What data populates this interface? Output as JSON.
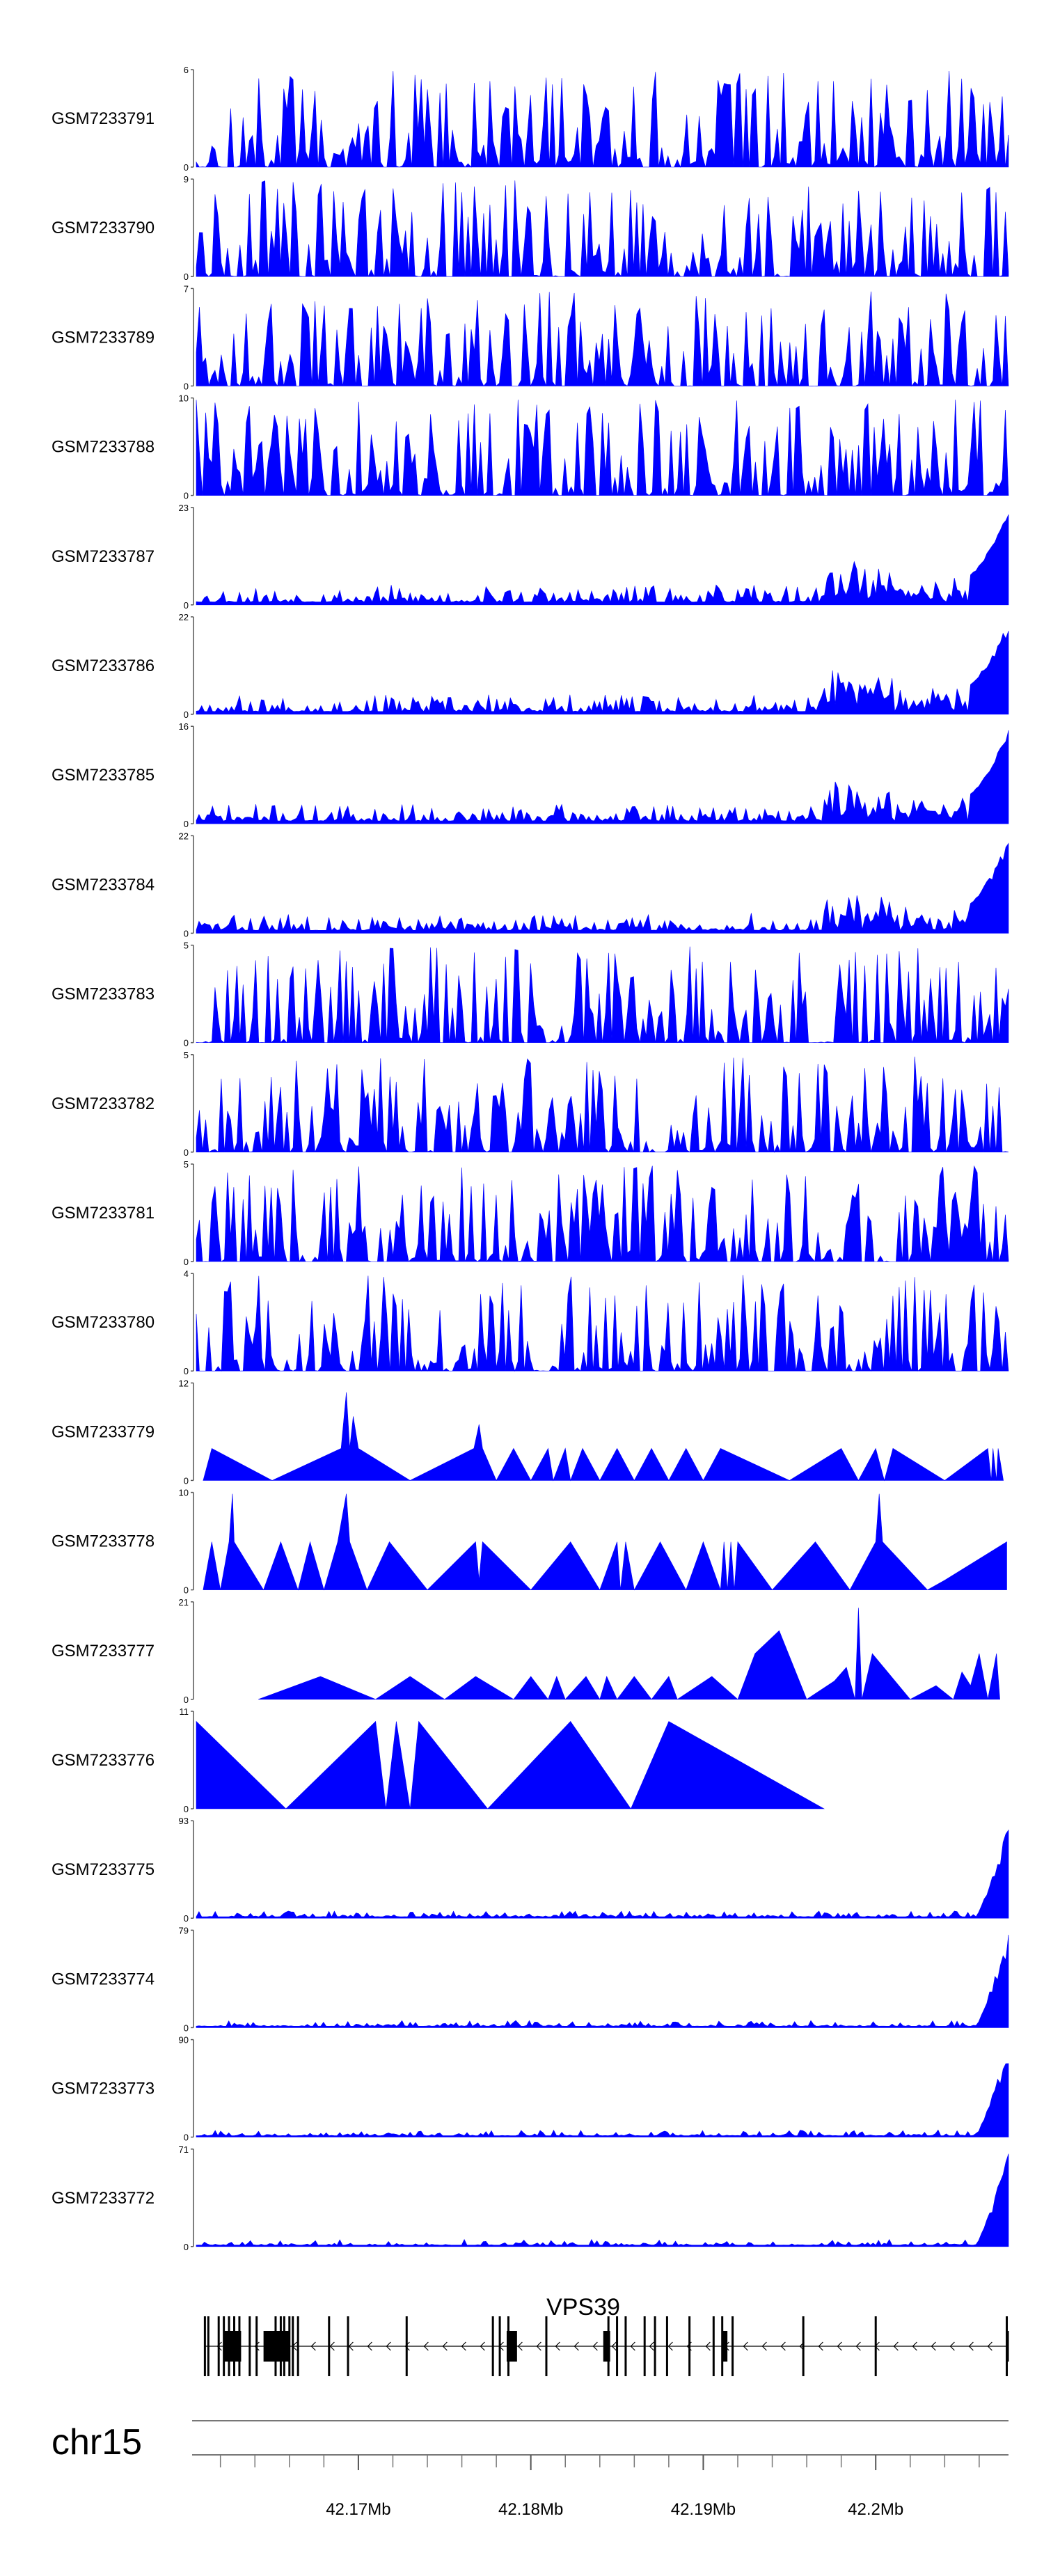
{
  "chart_data": {
    "type": "area",
    "title": "",
    "xlabel": "",
    "ylabel": "",
    "chromosome": "chr15",
    "xlim": [
      42.1606,
      42.2077
    ],
    "color": "#0000ff",
    "gene": {
      "name": "VPS39",
      "strand": "-"
    },
    "x_ticks": [
      {
        "value": 42.17,
        "label": "42.17Mb"
      },
      {
        "value": 42.18,
        "label": "42.18Mb"
      },
      {
        "value": 42.19,
        "label": "42.19Mb"
      },
      {
        "value": 42.2,
        "label": "42.2Mb"
      }
    ],
    "series": [
      {
        "name": "GSM7233791",
        "ymax": 6,
        "ymin_label": "0",
        "ymax_label": "6",
        "pattern": "dense",
        "seed": 11
      },
      {
        "name": "GSM7233790",
        "ymax": 9,
        "ymin_label": "0",
        "ymax_label": "9",
        "pattern": "dense",
        "seed": 23
      },
      {
        "name": "GSM7233789",
        "ymax": 7,
        "ymin_label": "0",
        "ymax_label": "7",
        "pattern": "dense",
        "seed": 37
      },
      {
        "name": "GSM7233788",
        "ymax": 10,
        "ymin_label": "0",
        "ymax_label": "10",
        "pattern": "dense",
        "seed": 41
      },
      {
        "name": "GSM7233787",
        "ymax": 23,
        "ymin_label": "0",
        "ymax_label": "23",
        "pattern": "rising",
        "seed": 53
      },
      {
        "name": "GSM7233786",
        "ymax": 22,
        "ymin_label": "0",
        "ymax_label": "22",
        "pattern": "rising",
        "seed": 67
      },
      {
        "name": "GSM7233785",
        "ymax": 16,
        "ymin_label": "0",
        "ymax_label": "16",
        "pattern": "rising",
        "seed": 71
      },
      {
        "name": "GSM7233784",
        "ymax": 22,
        "ymin_label": "0",
        "ymax_label": "22",
        "pattern": "rising",
        "seed": 83
      },
      {
        "name": "GSM7233783",
        "ymax": 5,
        "ymin_label": "0",
        "ymax_label": "5",
        "pattern": "dense",
        "seed": 97
      },
      {
        "name": "GSM7233782",
        "ymax": 5,
        "ymin_label": "0",
        "ymax_label": "5",
        "pattern": "dense",
        "seed": 101
      },
      {
        "name": "GSM7233781",
        "ymax": 5,
        "ymin_label": "0",
        "ymax_label": "5",
        "pattern": "dense",
        "seed": 113
      },
      {
        "name": "GSM7233780",
        "ymax": 4,
        "ymin_label": "0",
        "ymax_label": "4",
        "pattern": "dense",
        "seed": 127
      },
      {
        "name": "GSM7233779",
        "ymax": 12,
        "ymin_label": "0",
        "ymax_label": "12",
        "pattern": "sparse",
        "seed": 131,
        "points": [
          [
            42.161,
            0
          ],
          [
            42.1615,
            4
          ],
          [
            42.165,
            0
          ],
          [
            42.169,
            4
          ],
          [
            42.1693,
            11
          ],
          [
            42.1695,
            4
          ],
          [
            42.1697,
            8
          ],
          [
            42.17,
            4
          ],
          [
            42.173,
            0
          ],
          [
            42.1767,
            4
          ],
          [
            42.177,
            7
          ],
          [
            42.1772,
            4
          ],
          [
            42.178,
            0
          ],
          [
            42.179,
            4
          ],
          [
            42.18,
            0
          ],
          [
            42.181,
            4
          ],
          [
            42.1813,
            0
          ],
          [
            42.182,
            4
          ],
          [
            42.1823,
            0
          ],
          [
            42.183,
            4
          ],
          [
            42.184,
            0
          ],
          [
            42.185,
            4
          ],
          [
            42.186,
            0
          ],
          [
            42.187,
            4
          ],
          [
            42.188,
            0
          ],
          [
            42.189,
            4
          ],
          [
            42.19,
            0
          ],
          [
            42.191,
            4
          ],
          [
            42.195,
            0
          ],
          [
            42.198,
            4
          ],
          [
            42.199,
            0
          ],
          [
            42.2,
            4
          ],
          [
            42.2005,
            0
          ],
          [
            42.201,
            4
          ],
          [
            42.204,
            0
          ],
          [
            42.2065,
            4
          ],
          [
            42.2067,
            0
          ],
          [
            42.2068,
            4
          ],
          [
            42.207,
            0
          ],
          [
            42.2071,
            4
          ],
          [
            42.2074,
            0
          ]
        ]
      },
      {
        "name": "GSM7233778",
        "ymax": 10,
        "ymin_label": "0",
        "ymax_label": "10",
        "pattern": "sparse",
        "seed": 137,
        "points": [
          [
            42.161,
            0
          ],
          [
            42.1615,
            5
          ],
          [
            42.162,
            0
          ],
          [
            42.1625,
            5
          ],
          [
            42.1627,
            10
          ],
          [
            42.1628,
            5
          ],
          [
            42.1645,
            0
          ],
          [
            42.1655,
            5
          ],
          [
            42.1665,
            0
          ],
          [
            42.1672,
            5
          ],
          [
            42.168,
            0
          ],
          [
            42.1688,
            5
          ],
          [
            42.1693,
            10
          ],
          [
            42.1695,
            5
          ],
          [
            42.1705,
            0
          ],
          [
            42.1718,
            5
          ],
          [
            42.174,
            0
          ],
          [
            42.1768,
            5
          ],
          [
            42.177,
            1
          ],
          [
            42.1772,
            5
          ],
          [
            42.18,
            0
          ],
          [
            42.1823,
            5
          ],
          [
            42.184,
            0
          ],
          [
            42.185,
            5
          ],
          [
            42.1852,
            0
          ],
          [
            42.1855,
            5
          ],
          [
            42.186,
            0
          ],
          [
            42.1875,
            5
          ],
          [
            42.189,
            0
          ],
          [
            42.19,
            5
          ],
          [
            42.191,
            0
          ],
          [
            42.1912,
            5
          ],
          [
            42.1914,
            0
          ],
          [
            42.1916,
            5
          ],
          [
            42.1918,
            0
          ],
          [
            42.192,
            5
          ],
          [
            42.194,
            0
          ],
          [
            42.1965,
            5
          ],
          [
            42.1985,
            0
          ],
          [
            42.2,
            5
          ],
          [
            42.2002,
            10
          ],
          [
            42.2004,
            5
          ],
          [
            42.203,
            0
          ],
          [
            42.204,
            1
          ],
          [
            42.2076,
            5
          ]
        ]
      },
      {
        "name": "GSM7233777",
        "ymax": 21,
        "ymin_label": "0",
        "ymax_label": "21",
        "pattern": "sparse",
        "seed": 139,
        "points": [
          [
            42.1642,
            0
          ],
          [
            42.1678,
            5
          ],
          [
            42.171,
            0
          ],
          [
            42.173,
            5
          ],
          [
            42.175,
            0
          ],
          [
            42.1768,
            5
          ],
          [
            42.179,
            0
          ],
          [
            42.18,
            5
          ],
          [
            42.181,
            0
          ],
          [
            42.1815,
            5
          ],
          [
            42.182,
            0
          ],
          [
            42.1832,
            5
          ],
          [
            42.184,
            0
          ],
          [
            42.1844,
            5
          ],
          [
            42.185,
            0
          ],
          [
            42.186,
            5
          ],
          [
            42.187,
            0
          ],
          [
            42.188,
            5
          ],
          [
            42.1885,
            0
          ],
          [
            42.1905,
            5
          ],
          [
            42.192,
            0
          ],
          [
            42.193,
            10
          ],
          [
            42.1944,
            15
          ],
          [
            42.196,
            0
          ],
          [
            42.1976,
            4
          ],
          [
            42.1983,
            7
          ],
          [
            42.1988,
            0
          ],
          [
            42.199,
            20
          ],
          [
            42.1992,
            0
          ],
          [
            42.1998,
            10
          ],
          [
            42.202,
            0
          ],
          [
            42.2035,
            3
          ],
          [
            42.2045,
            0
          ],
          [
            42.205,
            6
          ],
          [
            42.2055,
            3
          ],
          [
            42.206,
            10
          ],
          [
            42.2065,
            0
          ],
          [
            42.207,
            10
          ],
          [
            42.2072,
            0
          ]
        ]
      },
      {
        "name": "GSM7233776",
        "ymax": 11,
        "ymin_label": "0",
        "ymax_label": "11",
        "pattern": "sparse",
        "seed": 149,
        "points": [
          [
            42.1606,
            0
          ],
          [
            42.1606,
            10
          ],
          [
            42.1658,
            0
          ],
          [
            42.171,
            10
          ],
          [
            42.1716,
            0
          ],
          [
            42.1722,
            10
          ],
          [
            42.173,
            0
          ],
          [
            42.1735,
            10
          ],
          [
            42.1775,
            0
          ],
          [
            42.1823,
            10
          ],
          [
            42.1858,
            0
          ],
          [
            42.188,
            10
          ],
          [
            42.197,
            0
          ]
        ]
      },
      {
        "name": "GSM7233775",
        "ymax": 93,
        "ymin_label": "0",
        "ymax_label": "93",
        "pattern": "peak",
        "seed": 151
      },
      {
        "name": "GSM7233774",
        "ymax": 79,
        "ymin_label": "0",
        "ymax_label": "79",
        "pattern": "peak",
        "seed": 157
      },
      {
        "name": "GSM7233773",
        "ymax": 90,
        "ymin_label": "0",
        "ymax_label": "90",
        "pattern": "peak",
        "seed": 163
      },
      {
        "name": "GSM7233772",
        "ymax": 71,
        "ymin_label": "0",
        "ymax_label": "71",
        "pattern": "peak",
        "seed": 167
      }
    ],
    "exons": [
      42.1611,
      42.1613,
      42.1619,
      42.1622,
      42.1625,
      42.1628,
      42.1631,
      42.1637,
      42.1641,
      42.1652,
      42.1655,
      42.1657,
      42.166,
      42.1662,
      42.1665,
      42.1683,
      42.1694,
      42.1728,
      42.1778,
      42.1782,
      42.1787,
      42.1809,
      42.1845,
      42.185,
      42.1855,
      42.1866,
      42.1872,
      42.1879,
      42.1892,
      42.1906,
      42.1911,
      42.1917,
      42.1958,
      42.2,
      42.2076
    ],
    "thick_exons": [
      [
        42.1622,
        42.1632
      ],
      [
        42.1645,
        42.166
      ],
      [
        42.1786,
        42.1792
      ],
      [
        42.1842,
        42.1846
      ],
      [
        42.1911,
        42.1914
      ],
      [
        42.2076,
        42.2077
      ]
    ]
  }
}
